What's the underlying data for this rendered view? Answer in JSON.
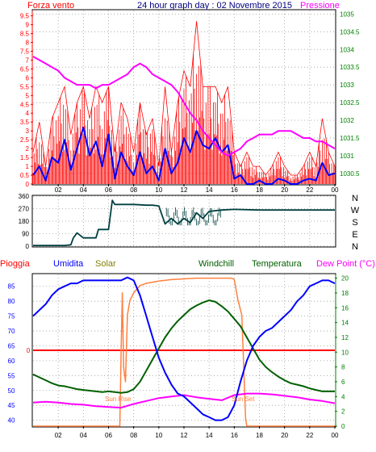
{
  "header": {
    "wind_label": "Forza vento",
    "title": "24 hour graph day : 02 Novembre 2015",
    "pressure_label": "Pressione"
  },
  "colors": {
    "wind": "#ff0000",
    "gust": "#ff0000",
    "pressure": "#ff00ff",
    "speed": "#0000ff",
    "direction": "#004040",
    "humidity": "#0000ff",
    "solar": "#ff8040",
    "windchill": "#006000",
    "temperature": "#006000",
    "dew_point": "#ff00ff",
    "rain": "#ff0000",
    "axis_green": "#008000",
    "axis_black": "#000000"
  },
  "chart_data": [
    {
      "type": "line",
      "name": "wind-pressure",
      "xticks": [
        "02",
        "04",
        "06",
        "08",
        "10",
        "12",
        "14",
        "16",
        "18",
        "20",
        "22",
        "00"
      ],
      "y_left_ticks": [
        "0",
        "0.5",
        "1",
        "1.5",
        "2",
        "2.5",
        "3",
        "3.5",
        "4",
        "4.5",
        "5",
        "5.5",
        "6",
        "6.5",
        "7",
        "7.5",
        "8",
        "8.5",
        "9",
        "9.5"
      ],
      "y_right_ticks": [
        "1030.5",
        "1031",
        "1031.5",
        "1032",
        "1032.5",
        "1033",
        "1033.5",
        "1034",
        "1034.5",
        "1035"
      ],
      "ylim_left": [
        0,
        9.8
      ],
      "ylim_right": [
        1030.2,
        1035.1
      ],
      "xlim": [
        0,
        24
      ],
      "pressure": {
        "x": [
          0,
          0.5,
          1,
          1.5,
          2,
          2.5,
          3,
          3.5,
          4,
          4.5,
          5,
          5.5,
          6,
          6.5,
          7,
          7.5,
          8,
          8.5,
          9,
          9.5,
          10,
          10.5,
          11,
          11.5,
          12,
          12.5,
          13,
          13.5,
          14,
          14.5,
          15,
          15.5,
          16,
          16.5,
          17,
          17.5,
          18,
          18.5,
          19,
          19.5,
          20,
          20.5,
          21,
          21.5,
          22,
          22.5,
          23,
          23.5,
          24
        ],
        "values": [
          1033.8,
          1033.7,
          1033.6,
          1033.5,
          1033.4,
          1033.2,
          1033.1,
          1033.0,
          1033.0,
          1033.0,
          1032.9,
          1033.0,
          1033.0,
          1033.1,
          1033.2,
          1033.3,
          1033.5,
          1033.6,
          1033.5,
          1033.3,
          1033.2,
          1033.1,
          1033.0,
          1032.8,
          1032.5,
          1032.2,
          1032.0,
          1031.7,
          1031.5,
          1031.3,
          1031.1,
          1031.0,
          1031.1,
          1031.2,
          1031.4,
          1031.5,
          1031.6,
          1031.6,
          1031.6,
          1031.7,
          1031.7,
          1031.7,
          1031.6,
          1031.5,
          1031.5,
          1031.4,
          1031.4,
          1031.3,
          1031.2
        ]
      },
      "wind_speed": {
        "x": [
          0,
          0.5,
          1,
          1.5,
          2,
          2.5,
          3,
          3.5,
          4,
          4.5,
          5,
          5.5,
          6,
          6.5,
          7,
          7.5,
          8,
          8.5,
          9,
          9.5,
          10,
          10.5,
          11,
          11.5,
          12,
          12.5,
          13,
          13.5,
          14,
          14.5,
          15,
          15.5,
          16,
          16.5,
          17,
          17.5,
          18,
          18.5,
          19,
          19.5,
          20,
          20.5,
          21,
          21.5,
          22,
          22.5,
          23,
          23.5,
          24
        ],
        "values": [
          0.5,
          1.0,
          0.2,
          1.5,
          1.2,
          2.5,
          0.8,
          2.0,
          3.2,
          1.6,
          2.4,
          1.0,
          2.8,
          0.3,
          1.8,
          1.0,
          0.5,
          1.8,
          0.6,
          1.0,
          0.2,
          2.0,
          0.6,
          1.2,
          2.6,
          1.8,
          3.0,
          2.2,
          2.0,
          2.6,
          1.8,
          2.2,
          0.3,
          0.5,
          0.0,
          0.0,
          0.2,
          0.0,
          0.0,
          0.3,
          0.2,
          0.0,
          0.0,
          0.2,
          0.3,
          0.2,
          1.2,
          0.5,
          0.6
        ]
      },
      "wind_gust": {
        "x": [
          0,
          0.5,
          1,
          1.5,
          2,
          2.5,
          3,
          3.5,
          4,
          4.5,
          5,
          5.5,
          6,
          6.5,
          7,
          7.5,
          8,
          8.5,
          9,
          9.5,
          10,
          10.5,
          11,
          11.5,
          12,
          12.5,
          13,
          13.5,
          14,
          14.5,
          15,
          15.5,
          16,
          16.5,
          17,
          17.5,
          18,
          18.5,
          19,
          19.5,
          20,
          20.5,
          21,
          21.5,
          22,
          22.5,
          23,
          23.5,
          24
        ],
        "values": [
          1.8,
          3.5,
          1.0,
          3.7,
          4.6,
          5.5,
          2.8,
          4.6,
          5.5,
          3.7,
          5.5,
          4.6,
          5.5,
          1.8,
          4.6,
          3.7,
          1.8,
          4.6,
          2.8,
          3.7,
          1.0,
          5.5,
          1.8,
          4.6,
          6.4,
          5.5,
          9.2,
          5.5,
          5.5,
          5.5,
          4.6,
          5.5,
          1.8,
          1.0,
          1.8,
          1.0,
          1.0,
          0.5,
          1.0,
          1.8,
          1.0,
          0.5,
          0.5,
          1.0,
          1.8,
          1.0,
          3.7,
          1.8,
          1.0
        ]
      }
    },
    {
      "type": "line",
      "name": "wind-direction",
      "xticks": [
        "02",
        "04",
        "06",
        "08",
        "10",
        "12",
        "14",
        "16",
        "18",
        "20",
        "22",
        "00"
      ],
      "yticks": [
        "0",
        "90",
        "180",
        "270",
        "360"
      ],
      "compass": [
        "N",
        "W",
        "S",
        "E",
        "N"
      ],
      "ylim": [
        0,
        360
      ],
      "xlim": [
        0,
        24
      ],
      "x": [
        0,
        0.5,
        1,
        1.5,
        2,
        2.5,
        3,
        3.2,
        3.5,
        4,
        4.5,
        5,
        5.2,
        5.5,
        6,
        6.3,
        6.5,
        7,
        8,
        9,
        9.5,
        10,
        10.5,
        11,
        11.5,
        12,
        12.5,
        13,
        13.5,
        14,
        15,
        16,
        18,
        20,
        22,
        24
      ],
      "values": [
        5,
        5,
        5,
        5,
        5,
        5,
        10,
        60,
        95,
        60,
        60,
        60,
        120,
        120,
        120,
        330,
        300,
        300,
        300,
        295,
        295,
        290,
        160,
        200,
        160,
        200,
        170,
        240,
        200,
        250,
        260,
        265,
        260,
        260,
        260,
        260
      ]
    },
    {
      "type": "line",
      "name": "humidity-temperature",
      "legend": [
        "Pioggia",
        "Umidita",
        "Solar",
        "Windchill",
        "Temperatura",
        "Dew Point (°C)"
      ],
      "xticks": [
        "02",
        "04",
        "06",
        "08",
        "10",
        "12",
        "14",
        "16",
        "18",
        "20",
        "22",
        "00"
      ],
      "y_left_ticks": [
        "40",
        "45",
        "50",
        "55",
        "60",
        "65",
        "70",
        "75",
        "80",
        "85"
      ],
      "y_right_ticks": [
        "0",
        "2",
        "4",
        "6",
        "8",
        "10",
        "12",
        "14",
        "16",
        "18",
        "20"
      ],
      "rain_tick": "0",
      "ylim_left": [
        38,
        89
      ],
      "ylim_right": [
        0,
        20.5
      ],
      "xlim": [
        0,
        24
      ],
      "annotations": [
        "Sun Rise",
        "Sun Set"
      ],
      "humidity": {
        "x": [
          0,
          0.5,
          1,
          1.5,
          2,
          2.5,
          3,
          3.5,
          4,
          4.5,
          5,
          5.5,
          6,
          6.5,
          7,
          7.5,
          8,
          8.5,
          9,
          9.5,
          10,
          10.5,
          11,
          11.5,
          12,
          12.5,
          13,
          13.5,
          14,
          14.5,
          15,
          15.5,
          16,
          16.5,
          17,
          17.5,
          18,
          18.5,
          19,
          19.5,
          20,
          20.5,
          21,
          21.5,
          22,
          22.5,
          23,
          23.5,
          24
        ],
        "values": [
          75,
          77,
          79,
          82,
          84,
          85,
          86,
          86,
          87,
          87,
          87,
          87,
          87,
          87,
          87,
          88,
          87,
          82,
          75,
          68,
          61,
          56,
          52,
          49,
          48,
          46,
          44,
          42,
          41,
          40,
          40,
          41,
          45,
          53,
          60,
          65,
          68,
          70,
          71,
          73,
          75,
          77,
          80,
          82,
          85,
          86,
          87,
          87,
          86
        ]
      },
      "temperature": {
        "x": [
          0,
          0.5,
          1,
          1.5,
          2,
          2.5,
          3,
          3.5,
          4,
          4.5,
          5,
          5.5,
          6,
          6.5,
          7,
          7.5,
          8,
          8.5,
          9,
          9.5,
          10,
          10.5,
          11,
          11.5,
          12,
          12.5,
          13,
          13.5,
          14,
          14.5,
          15,
          15.5,
          16,
          16.5,
          17,
          17.5,
          18,
          18.5,
          19,
          19.5,
          20,
          20.5,
          21,
          21.5,
          22,
          22.5,
          23,
          23.5,
          24
        ],
        "values": [
          7.0,
          6.6,
          6.2,
          5.8,
          5.5,
          5.4,
          5.2,
          5.0,
          4.9,
          4.8,
          4.7,
          4.6,
          4.7,
          4.6,
          4.5,
          4.6,
          5.0,
          6.0,
          7.5,
          9.0,
          10.5,
          12.0,
          13.2,
          14.2,
          15.0,
          15.8,
          16.3,
          16.7,
          17.0,
          16.8,
          16.2,
          15.5,
          14.5,
          13.5,
          12.0,
          10.5,
          9.0,
          8.0,
          7.3,
          6.7,
          6.2,
          5.8,
          5.6,
          5.4,
          5.1,
          4.9,
          4.7,
          4.7,
          4.7
        ]
      },
      "dew_point": {
        "x": [
          0,
          1,
          2,
          3,
          4,
          5,
          6,
          7,
          8,
          9,
          10,
          11,
          12,
          13,
          14,
          15,
          16,
          17,
          18,
          19,
          20,
          21,
          22,
          23,
          24
        ],
        "values": [
          3.2,
          3.3,
          3.2,
          3.0,
          2.9,
          2.7,
          2.6,
          2.5,
          3.0,
          3.4,
          3.8,
          4.0,
          4.2,
          3.9,
          3.7,
          3.5,
          4.2,
          4.4,
          4.4,
          4.3,
          4.1,
          3.9,
          3.6,
          3.4,
          3.1
        ]
      },
      "solar": {
        "x": [
          0,
          6.9,
          7.0,
          7.1,
          7.2,
          7.35,
          7.5,
          7.7,
          8.0,
          8.5,
          9.0,
          10.0,
          11.0,
          12.0,
          13.0,
          14.0,
          15.0,
          15.8,
          16.0,
          16.3,
          16.6,
          16.9,
          17.0,
          24
        ],
        "values": [
          0,
          0,
          10,
          18,
          8,
          6,
          15,
          17,
          18,
          19,
          19.3,
          19.6,
          19.8,
          19.9,
          20.0,
          20.0,
          20.0,
          20.0,
          19.8,
          17,
          15,
          1,
          0,
          0
        ]
      }
    }
  ]
}
